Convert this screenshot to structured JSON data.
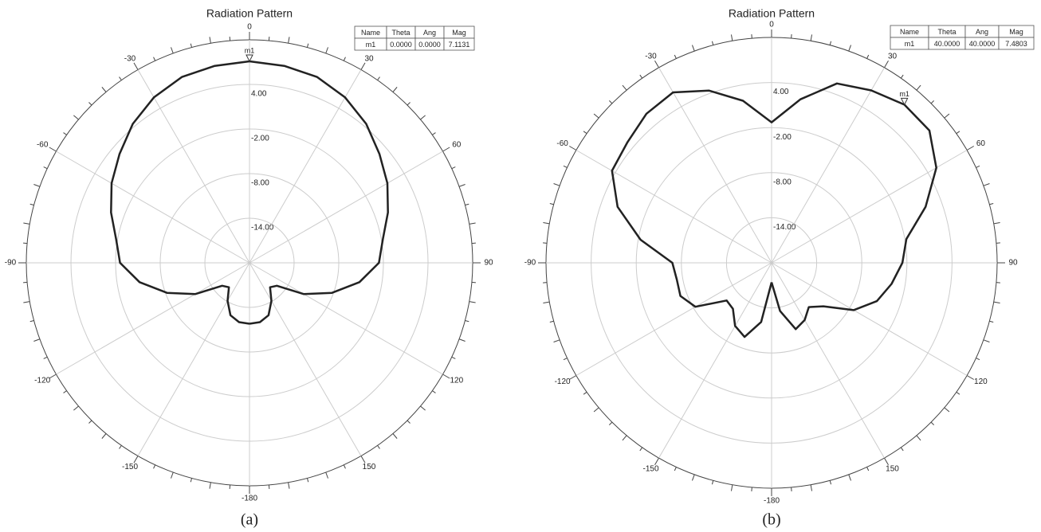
{
  "chart_data": [
    {
      "type": "polar",
      "title": "Radiation Pattern",
      "caption": "(a)",
      "theta_zero": "top",
      "theta_direction": "clockwise",
      "color": "#222222",
      "grid": true,
      "x": [
        -180,
        -170,
        -160,
        -150,
        -140,
        -130,
        -120,
        -110,
        -100,
        -90,
        -80,
        -70,
        -60,
        -50,
        -40,
        -30,
        -20,
        -10,
        0,
        10,
        20,
        30,
        40,
        50,
        60,
        70,
        80,
        90,
        100,
        110,
        120,
        130,
        140,
        150,
        160,
        170,
        180
      ],
      "values": [
        -11.8,
        -11.9,
        -12.5,
        -14.1,
        -15.7,
        -15.2,
        -11.6,
        -8.2,
        -5.0,
        -2.6,
        -1.8,
        -0.2,
        1.4,
        2.8,
        4.4,
        5.7,
        6.6,
        6.9,
        7.11,
        6.9,
        6.6,
        5.7,
        4.4,
        2.8,
        1.4,
        -0.2,
        -1.8,
        -2.6,
        -5.0,
        -8.2,
        -11.6,
        -15.2,
        -15.7,
        -14.1,
        -12.5,
        -11.9,
        -11.8
      ],
      "xticks": [
        0,
        30,
        60,
        90,
        120,
        150,
        -180,
        -150,
        -120,
        -90,
        -60,
        -30
      ],
      "ylim": [
        -20,
        10
      ],
      "yticks": [
        {
          "value": -14,
          "label": "-14.00"
        },
        {
          "value": -8,
          "label": "-8.00"
        },
        {
          "value": -2,
          "label": "-2.00"
        },
        {
          "value": 4,
          "label": "4.00"
        }
      ],
      "marker": {
        "name": "m1",
        "theta": 0,
        "mag": 7.1131
      },
      "marker_table": {
        "columns": [
          "Name",
          "Theta",
          "Ang",
          "Mag"
        ],
        "rows": [
          [
            "m1",
            "0.0000",
            "0.0000",
            "7.1131"
          ]
        ]
      }
    },
    {
      "type": "polar",
      "title": "Radiation Pattern",
      "caption": "(b)",
      "theta_zero": "top",
      "theta_direction": "clockwise",
      "color": "#222222",
      "grid": true,
      "x": [
        -180,
        -170,
        -160,
        -150,
        -140,
        -130,
        -120,
        -110,
        -100,
        -90,
        -80,
        -70,
        -60,
        -50,
        -40,
        -30,
        -20,
        -10,
        0,
        10,
        20,
        30,
        40,
        50,
        60,
        70,
        80,
        90,
        100,
        110,
        120,
        130,
        140,
        150,
        160,
        170,
        180
      ],
      "values": [
        -17.4,
        -12.0,
        -9.5,
        -10.3,
        -12.0,
        -12.2,
        -8.3,
        -7.1,
        -7.2,
        -6.8,
        -2.3,
        1.8,
        4.5,
        5.0,
        5.9,
        6.2,
        4.4,
        1.9,
        -1.3,
        2.1,
        5.4,
        6.5,
        7.48,
        7.4,
        5.3,
        1.8,
        -1.8,
        -2.6,
        -3.8,
        -5.1,
        -7.4,
        -11.0,
        -12.3,
        -11.2,
        -10.6,
        -13.5,
        -17.4
      ],
      "xticks": [
        0,
        30,
        60,
        90,
        120,
        150,
        -180,
        -150,
        -120,
        -90,
        -60,
        -30
      ],
      "ylim": [
        -20,
        10
      ],
      "yticks": [
        {
          "value": -14,
          "label": "-14.00"
        },
        {
          "value": -8,
          "label": "-8.00"
        },
        {
          "value": -2,
          "label": "-2.00"
        },
        {
          "value": 4,
          "label": "4.00"
        }
      ],
      "marker": {
        "name": "m1",
        "theta": 40,
        "mag": 7.4803
      },
      "marker_table": {
        "columns": [
          "Name",
          "Theta",
          "Ang",
          "Mag"
        ],
        "rows": [
          [
            "m1",
            "40.0000",
            "40.0000",
            "7.4803"
          ]
        ]
      }
    }
  ]
}
